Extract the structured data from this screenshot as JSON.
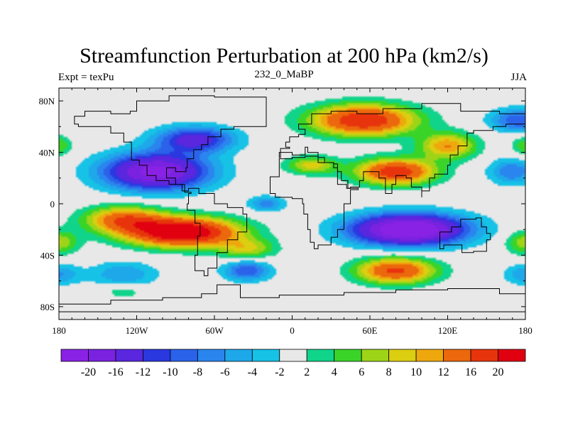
{
  "chart_data": {
    "type": "heatmap",
    "title": "Streamfunction Perturbation at 200 hPa (km2/s)",
    "subtitle_left": "Expt = texPu",
    "subtitle_center": "232_0_MaBP",
    "subtitle_right": "JJA",
    "xlim": [
      -180,
      180
    ],
    "ylim": [
      -90,
      90
    ],
    "x_ticks": [
      {
        "value": -180,
        "label": "180"
      },
      {
        "value": -120,
        "label": "120W"
      },
      {
        "value": -60,
        "label": "60W"
      },
      {
        "value": 0,
        "label": "0"
      },
      {
        "value": 60,
        "label": "60E"
      },
      {
        "value": 120,
        "label": "120E"
      },
      {
        "value": 180,
        "label": "180"
      }
    ],
    "y_ticks": [
      {
        "value": 80,
        "label": "80N"
      },
      {
        "value": 40,
        "label": "40N"
      },
      {
        "value": 0,
        "label": "0"
      },
      {
        "value": -40,
        "label": "40S"
      },
      {
        "value": -80,
        "label": "80S"
      }
    ],
    "levels": [
      -20,
      -16,
      -12,
      -10,
      -8,
      -6,
      -4,
      -2,
      2,
      4,
      6,
      8,
      10,
      12,
      16,
      20
    ],
    "level_labels": [
      "-20",
      "-16",
      "-12",
      "-10",
      "-8",
      "-6",
      "-4",
      "-2",
      "2",
      "4",
      "6",
      "8",
      "10",
      "12",
      "16",
      "20"
    ],
    "colors": [
      "#8a22e6",
      "#7a22e0",
      "#5a26de",
      "#2a38e0",
      "#2a62ea",
      "#2a86ee",
      "#1ea8ea",
      "#16c2e6",
      "#e8e8e8",
      "#10d48a",
      "#3ad428",
      "#9ed418",
      "#dcce10",
      "#eea80e",
      "#ec680c",
      "#e8340c",
      "#e00010"
    ],
    "features": [
      {
        "lon": -85,
        "lat": -22,
        "amp": 26,
        "slon": 42,
        "slat": 11
      },
      {
        "lon": -130,
        "lat": -12,
        "amp": 14,
        "slon": 30,
        "slat": 10
      },
      {
        "lon": -35,
        "lat": -35,
        "amp": 8,
        "slon": 22,
        "slat": 8
      },
      {
        "lon": 80,
        "lat": -52,
        "amp": 17,
        "slon": 30,
        "slat": 10
      },
      {
        "lon": -105,
        "lat": 25,
        "amp": -22,
        "slon": 40,
        "slat": 14
      },
      {
        "lon": -75,
        "lat": 50,
        "amp": -14,
        "slon": 30,
        "slat": 10
      },
      {
        "lon": 170,
        "lat": 25,
        "amp": -8,
        "slon": 18,
        "slat": 10
      },
      {
        "lon": 175,
        "lat": 65,
        "amp": -10,
        "slon": 22,
        "slat": 9
      },
      {
        "lon": 90,
        "lat": -20,
        "amp": -26,
        "slon": 44,
        "slat": 12
      },
      {
        "lon": -35,
        "lat": -52,
        "amp": -10,
        "slon": 18,
        "slat": 8
      },
      {
        "lon": -130,
        "lat": -55,
        "amp": -6,
        "slon": 26,
        "slat": 10
      },
      {
        "lon": -20,
        "lat": 0,
        "amp": -7,
        "slon": 14,
        "slat": 6
      },
      {
        "lon": 55,
        "lat": 65,
        "amp": 20,
        "slon": 40,
        "slat": 12
      },
      {
        "lon": 80,
        "lat": 25,
        "amp": 19,
        "slon": 30,
        "slat": 10
      },
      {
        "lon": 15,
        "lat": 30,
        "amp": 9,
        "slon": 20,
        "slat": 7
      },
      {
        "lon": 120,
        "lat": 45,
        "amp": 12,
        "slon": 22,
        "slat": 10
      },
      {
        "lon": -130,
        "lat": -68,
        "amp": 4,
        "slon": 16,
        "slat": 6
      },
      {
        "lon": -180,
        "lat": -30,
        "amp": 8,
        "slon": 15,
        "slat": 9
      },
      {
        "lon": 180,
        "lat": -30,
        "amp": 8,
        "slon": 15,
        "slat": 9
      },
      {
        "lon": -180,
        "lat": 45,
        "amp": 6,
        "slon": 10,
        "slat": 8
      },
      {
        "lon": 180,
        "lat": 45,
        "amp": 6,
        "slon": 10,
        "slat": 8
      },
      {
        "lon": 180,
        "lat": -55,
        "amp": -6,
        "slon": 16,
        "slat": 8
      },
      {
        "lon": -180,
        "lat": -55,
        "amp": -6,
        "slon": 16,
        "slat": 8
      }
    ],
    "continent_outlines": [
      [
        [
          -120,
          80
        ],
        [
          -95,
          84
        ],
        [
          -60,
          83
        ],
        [
          -30,
          83
        ],
        [
          -20,
          72
        ],
        [
          -20,
          60
        ],
        [
          -45,
          58
        ],
        [
          -55,
          52
        ],
        [
          -65,
          46
        ],
        [
          -70,
          42
        ],
        [
          -76,
          35
        ],
        [
          -81,
          28
        ],
        [
          -82,
          25
        ],
        [
          -90,
          28
        ],
        [
          -97,
          26
        ],
        [
          -97,
          20
        ],
        [
          -90,
          15
        ],
        [
          -83,
          9
        ],
        [
          -78,
          8
        ],
        [
          -80,
          0
        ],
        [
          -81,
          -5
        ],
        [
          -75,
          -15
        ],
        [
          -71,
          -25
        ],
        [
          -73,
          -40
        ],
        [
          -75,
          -52
        ],
        [
          -68,
          -56
        ],
        [
          -65,
          -50
        ],
        [
          -58,
          -38
        ],
        [
          -50,
          -28
        ],
        [
          -42,
          -22
        ],
        [
          -35,
          -8
        ],
        [
          -38,
          -3
        ],
        [
          -50,
          0
        ],
        [
          -60,
          8
        ],
        [
          -72,
          12
        ],
        [
          -80,
          10
        ],
        [
          -85,
          15
        ],
        [
          -95,
          18
        ],
        [
          -105,
          22
        ],
        [
          -112,
          30
        ],
        [
          -118,
          34
        ],
        [
          -124,
          40
        ],
        [
          -124,
          48
        ],
        [
          -130,
          55
        ],
        [
          -140,
          60
        ],
        [
          -150,
          60
        ],
        [
          -165,
          62
        ],
        [
          -168,
          68
        ],
        [
          -160,
          72
        ],
        [
          -140,
          70
        ],
        [
          -125,
          72
        ],
        [
          -120,
          80
        ]
      ],
      [
        [
          -10,
          36
        ],
        [
          -9,
          43
        ],
        [
          -2,
          44
        ],
        [
          -5,
          48
        ],
        [
          -2,
          52
        ],
        [
          5,
          54
        ],
        [
          10,
          58
        ],
        [
          5,
          62
        ],
        [
          15,
          70
        ],
        [
          30,
          72
        ],
        [
          50,
          70
        ],
        [
          70,
          74
        ],
        [
          100,
          78
        ],
        [
          130,
          72
        ],
        [
          160,
          70
        ],
        [
          180,
          68
        ],
        [
          180,
          62
        ],
        [
          165,
          60
        ],
        [
          155,
          57
        ],
        [
          140,
          55
        ],
        [
          135,
          45
        ],
        [
          128,
          38
        ],
        [
          122,
          30
        ],
        [
          120,
          23
        ],
        [
          110,
          20
        ],
        [
          106,
          10
        ],
        [
          100,
          5
        ],
        [
          100,
          13
        ],
        [
          92,
          20
        ],
        [
          88,
          22
        ],
        [
          80,
          15
        ],
        [
          77,
          8
        ],
        [
          72,
          20
        ],
        [
          67,
          25
        ],
        [
          58,
          25
        ],
        [
          55,
          18
        ],
        [
          52,
          13
        ],
        [
          45,
          12
        ],
        [
          42,
          15
        ],
        [
          35,
          28
        ],
        [
          32,
          32
        ],
        [
          25,
          36
        ],
        [
          20,
          40
        ],
        [
          12,
          44
        ],
        [
          10,
          38
        ],
        [
          0,
          40
        ],
        [
          -10,
          36
        ]
      ],
      [
        [
          -17,
          21
        ],
        [
          -10,
          35
        ],
        [
          0,
          36
        ],
        [
          10,
          37
        ],
        [
          20,
          32
        ],
        [
          32,
          31
        ],
        [
          35,
          25
        ],
        [
          38,
          18
        ],
        [
          43,
          12
        ],
        [
          51,
          11
        ],
        [
          45,
          0
        ],
        [
          40,
          -10
        ],
        [
          40,
          -20
        ],
        [
          35,
          -26
        ],
        [
          30,
          -32
        ],
        [
          20,
          -35
        ],
        [
          17,
          -30
        ],
        [
          14,
          -20
        ],
        [
          12,
          -8
        ],
        [
          9,
          0
        ],
        [
          8,
          4
        ],
        [
          0,
          5
        ],
        [
          -8,
          5
        ],
        [
          -13,
          8
        ],
        [
          -17,
          14
        ],
        [
          -17,
          21
        ]
      ],
      [
        [
          114,
          -22
        ],
        [
          123,
          -18
        ],
        [
          130,
          -12
        ],
        [
          137,
          -12
        ],
        [
          142,
          -11
        ],
        [
          146,
          -18
        ],
        [
          150,
          -23
        ],
        [
          153,
          -28
        ],
        [
          150,
          -37
        ],
        [
          140,
          -38
        ],
        [
          131,
          -32
        ],
        [
          117,
          -35
        ],
        [
          114,
          -30
        ],
        [
          114,
          -22
        ]
      ],
      [
        [
          -58,
          -63
        ],
        [
          -40,
          -73
        ],
        [
          -10,
          -71
        ],
        [
          40,
          -69
        ],
        [
          80,
          -67
        ],
        [
          120,
          -66
        ],
        [
          160,
          -70
        ],
        [
          180,
          -75
        ],
        [
          180,
          -84
        ],
        [
          -180,
          -84
        ],
        [
          -180,
          -78
        ],
        [
          -140,
          -75
        ],
        [
          -100,
          -73
        ],
        [
          -70,
          -70
        ],
        [
          -58,
          -63
        ]
      ]
    ]
  }
}
